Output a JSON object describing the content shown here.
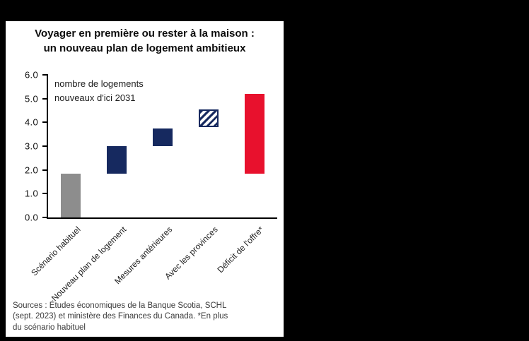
{
  "background": "#000000",
  "panel_bg": "#ffffff",
  "chart_data": {
    "type": "bar",
    "subtype": "floating-range-waterfall",
    "title_lines": [
      "Voyager en première ou rester à la maison :",
      "un nouveau plan de logement ambitieux"
    ],
    "annotation_lines": [
      "nombre de logements",
      "nouveaux d'ici 2031"
    ],
    "xlabel": "",
    "ylabel": "",
    "ylim": [
      0,
      6
    ],
    "ytick_values": [
      0,
      1,
      2,
      3,
      4,
      5,
      6
    ],
    "ytick_labels": [
      "0.0",
      "1.0",
      "2.0",
      "3.0",
      "4.0",
      "5.0",
      "6.0"
    ],
    "grid": false,
    "legend": "none",
    "categories": [
      "Scénario habituel",
      "Nouveau plan de logement",
      "Mesures antérieures",
      "Avec les provinces",
      "Déficit de l'offre*"
    ],
    "bars": [
      {
        "category": "Scénario habituel",
        "start": 0,
        "end": 1.85,
        "color": "#8d8d8d",
        "pattern": "solid"
      },
      {
        "category": "Nouveau plan de logement",
        "start": 1.85,
        "end": 3.0,
        "color": "#16295f",
        "pattern": "solid"
      },
      {
        "category": "Mesures antérieures",
        "start": 3.0,
        "end": 3.75,
        "color": "#16295f",
        "pattern": "solid"
      },
      {
        "category": "Avec les provinces",
        "start": 3.8,
        "end": 4.55,
        "color": "#16295f",
        "pattern": "hatched"
      },
      {
        "category": "Déficit de l'offre*",
        "start": 1.85,
        "end": 5.2,
        "color": "#e8112d",
        "pattern": "solid"
      }
    ],
    "colors": {
      "gray": "#8d8d8d",
      "navy": "#16295f",
      "red": "#e8112d",
      "axis": "#000000"
    }
  },
  "source": {
    "lines": [
      "Sources : Études économiques de la Banque Scotia, SCHL",
      "(sept. 2023) et ministère des Finances du Canada. *En plus",
      "du scénario habituel"
    ]
  }
}
